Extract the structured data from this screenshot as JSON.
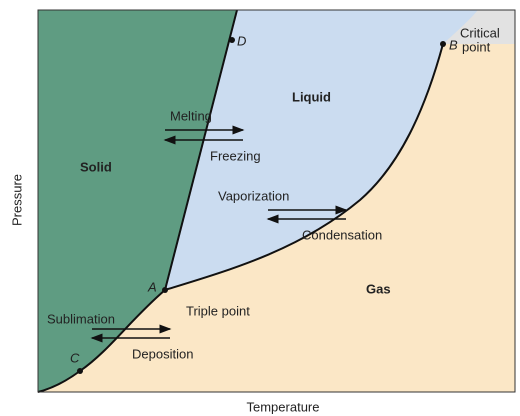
{
  "axes": {
    "x_label": "Temperature",
    "y_label": "Pressure"
  },
  "regions": {
    "solid": "Solid",
    "liquid": "Liquid",
    "gas": "Gas"
  },
  "processes": {
    "melting": "Melting",
    "freezing": "Freezing",
    "vaporization": "Vaporization",
    "condensation": "Condensation",
    "sublimation": "Sublimation",
    "deposition": "Deposition"
  },
  "points": {
    "a": "A",
    "b": "B",
    "c": "C",
    "d": "D",
    "triple_point": "Triple point",
    "critical_point": [
      "Critical",
      "point"
    ]
  }
}
